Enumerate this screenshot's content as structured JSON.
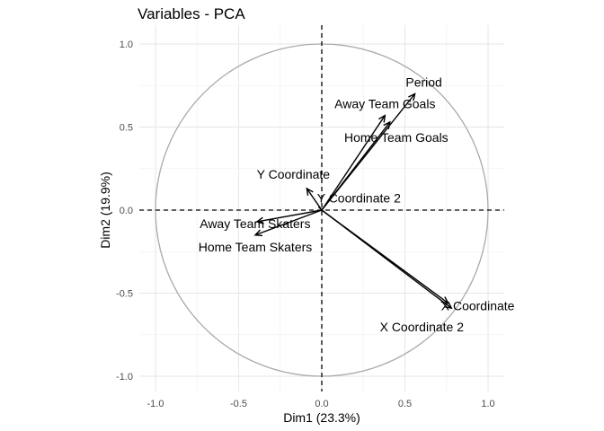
{
  "chart_data": {
    "type": "scatter",
    "title": "Variables - PCA",
    "xlabel": "Dim1 (23.3%)",
    "ylabel": "Dim2 (19.9%)",
    "xlim": [
      -1.0,
      1.0
    ],
    "ylim": [
      -1.0,
      1.0
    ],
    "x_ticks": [
      "-1.0",
      "-0.5",
      "0.0",
      "0.5",
      "1.0"
    ],
    "y_ticks": [
      "1.0",
      "0.5",
      "0.0",
      "-0.5",
      "-1.0"
    ],
    "grid": true,
    "correlation_circle": true,
    "variables": [
      {
        "name": "Period",
        "x": 0.56,
        "y": 0.7
      },
      {
        "name": "Away Team Goals",
        "x": 0.38,
        "y": 0.57
      },
      {
        "name": "Home Team Goals",
        "x": 0.41,
        "y": 0.53
      },
      {
        "name": "Y Coordinate",
        "x": -0.09,
        "y": 0.13
      },
      {
        "name": "Y Coordinate 2",
        "x": -0.02,
        "y": 0.02
      },
      {
        "name": "Away Team Skaters",
        "x": -0.39,
        "y": -0.07
      },
      {
        "name": "Home Team Skaters",
        "x": -0.4,
        "y": -0.15
      },
      {
        "name": "X Coordinate",
        "x": 0.76,
        "y": -0.56
      },
      {
        "name": "X Coordinate 2",
        "x": 0.78,
        "y": -0.59
      }
    ]
  }
}
